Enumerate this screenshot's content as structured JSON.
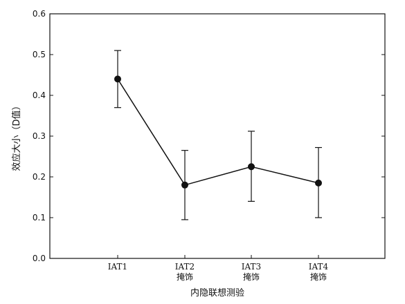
{
  "chart_data": {
    "type": "line",
    "title": "",
    "xlabel": "内隐联想测验",
    "ylabel": "效应大小（D值）",
    "ylim": [
      0.0,
      0.6
    ],
    "yticks": [
      "0.0",
      "0.1",
      "0.2",
      "0.3",
      "0.4",
      "0.5",
      "0.6"
    ],
    "categories": [
      {
        "line1": "IAT1",
        "line2": ""
      },
      {
        "line1": "IAT2",
        "line2": "掩饰"
      },
      {
        "line1": "IAT3",
        "line2": "掩饰"
      },
      {
        "line1": "IAT4",
        "line2": "掩饰"
      }
    ],
    "series": [
      {
        "values": [
          0.44,
          0.18,
          0.225,
          0.185
        ],
        "error_upper": [
          0.51,
          0.265,
          0.312,
          0.272
        ],
        "error_lower": [
          0.37,
          0.095,
          0.14,
          0.1
        ]
      }
    ],
    "grid": false,
    "legend": "none"
  }
}
